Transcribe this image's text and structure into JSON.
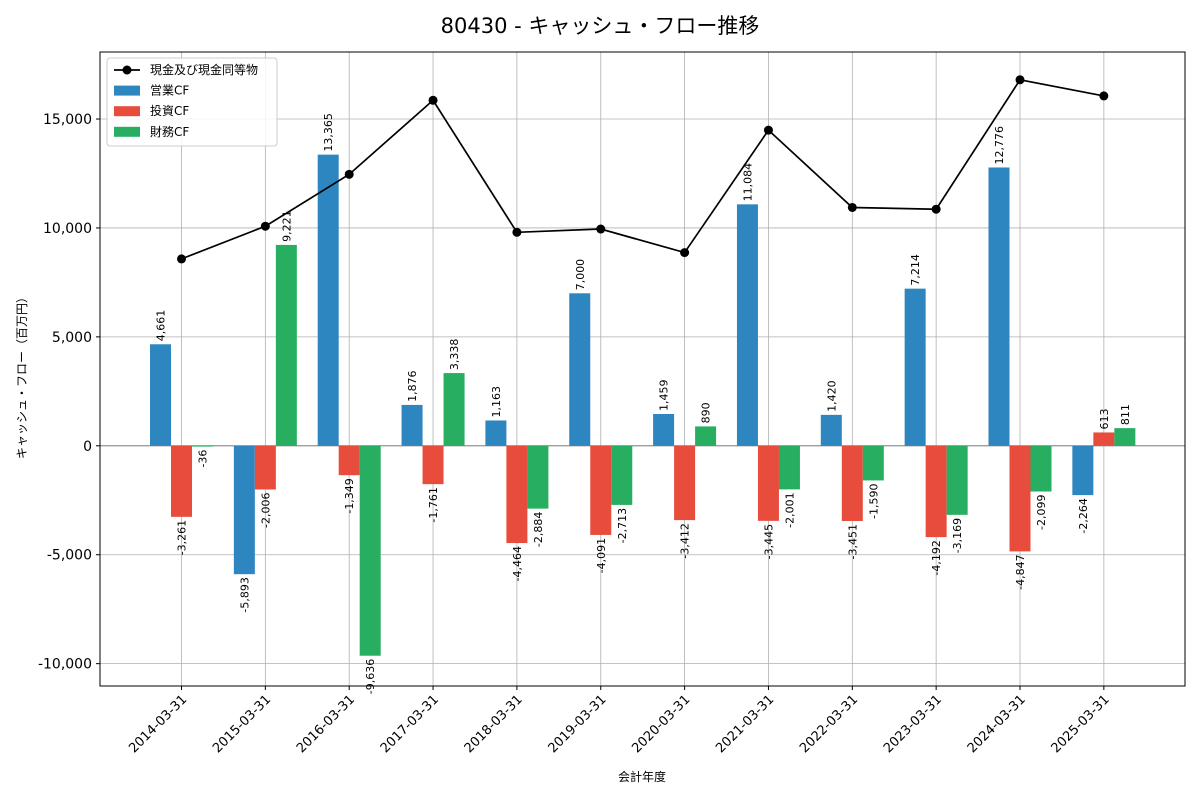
{
  "chart_data": {
    "type": "bar",
    "title": "80430 - キャッシュ・フロー推移",
    "xlabel": "会計年度",
    "ylabel": "キャッシュ・フロー（百万円）",
    "ylim": [
      -10000,
      17000
    ],
    "yticks": [
      -10000,
      -5000,
      0,
      5000,
      10000,
      15000
    ],
    "ytick_labels": [
      "-10,000",
      "-5,000",
      "0",
      "5,000",
      "10,000",
      "15,000"
    ],
    "grid": true,
    "legend_position": "top-left",
    "categories": [
      "2014-03-31",
      "2015-03-31",
      "2016-03-31",
      "2017-03-31",
      "2018-03-31",
      "2019-03-31",
      "2020-03-31",
      "2021-03-31",
      "2022-03-31",
      "2023-03-31",
      "2024-03-31",
      "2025-03-31"
    ],
    "series": [
      {
        "name": "営業CF",
        "kind": "bar",
        "color": "#2e86c1",
        "values": [
          4661,
          -5893,
          13365,
          1876,
          1163,
          7000,
          1459,
          11084,
          1420,
          7214,
          12776,
          -2264
        ],
        "labels": [
          "4,661",
          "-5,893",
          "13,365",
          "1,876",
          "1,163",
          "7,000",
          "1,459",
          "11,084",
          "1,420",
          "7,214",
          "12,776",
          "-2,264"
        ]
      },
      {
        "name": "投資CF",
        "kind": "bar",
        "color": "#e74c3c",
        "values": [
          -3261,
          -2006,
          -1349,
          -1761,
          -4464,
          -4091,
          -3412,
          -3445,
          -3451,
          -4192,
          -4847,
          613
        ],
        "labels": [
          "-3,261",
          "-2,006",
          "-1,349",
          "-1,761",
          "-4,464",
          "-4,091",
          "-3,412",
          "-3,445",
          "-3,451",
          "-4,192",
          "-4,847",
          "613"
        ]
      },
      {
        "name": "財務CF",
        "kind": "bar",
        "color": "#27ae60",
        "values": [
          -36,
          9221,
          -9636,
          3338,
          -2884,
          -2713,
          890,
          -2001,
          -1590,
          -3169,
          -2099,
          811
        ],
        "labels": [
          "-36",
          "9,221",
          "-9,636",
          "3,338",
          "-2,884",
          "-2,713",
          "890",
          "-2,001",
          "-1,590",
          "-3,169",
          "-2,099",
          "811"
        ]
      },
      {
        "name": "現金及び現金同等物",
        "kind": "line",
        "color": "#000000",
        "values": [
          8580,
          10080,
          12460,
          15860,
          9800,
          9950,
          8870,
          14490,
          10940,
          10860,
          16800,
          16060
        ]
      }
    ]
  }
}
